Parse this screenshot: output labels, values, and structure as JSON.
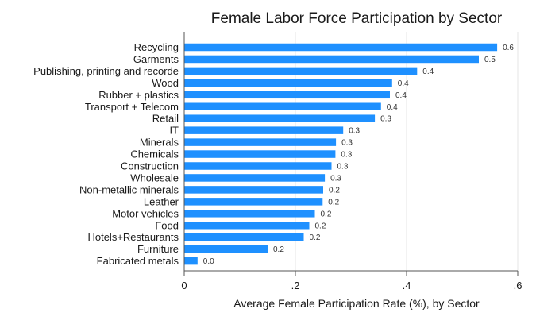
{
  "chart_data": {
    "type": "bar",
    "orientation": "horizontal",
    "title": "Female Labor Force Participation by Sector",
    "xlabel": "Average Female Participation Rate (%), by Sector",
    "ylabel": "",
    "xlim": [
      0,
      0.6
    ],
    "xticks": [
      {
        "value": 0,
        "label": "0"
      },
      {
        "value": 0.2,
        "label": ".2"
      },
      {
        "value": 0.4,
        "label": ".4"
      },
      {
        "value": 0.6,
        "label": ".6"
      }
    ],
    "grid": true,
    "bar_color": "#1e90ff",
    "categories": [
      "Recycling",
      "Garments",
      "Publishing, printing and recorde",
      "Wood",
      "Rubber +  plastics",
      "Transport + Telecom",
      "Retail",
      "IT",
      "Minerals",
      "Chemicals",
      "Construction",
      "Wholesale",
      "Non-metallic minerals",
      "Leather",
      "Motor vehicles",
      "Food",
      "Hotels+Restaurants",
      "Furniture",
      "Fabricated metals"
    ],
    "values": [
      0.563,
      0.53,
      0.419,
      0.374,
      0.37,
      0.354,
      0.343,
      0.286,
      0.273,
      0.272,
      0.265,
      0.253,
      0.25,
      0.249,
      0.235,
      0.225,
      0.215,
      0.15,
      0.024
    ],
    "data_labels": [
      "0.6",
      "0.5",
      "0.4",
      "0.4",
      "0.4",
      "0.4",
      "0.3",
      "0.3",
      "0.3",
      "0.3",
      "0.3",
      "0.3",
      "0.2",
      "0.2",
      "0.2",
      "0.2",
      "0.2",
      "0.2",
      "0.0"
    ]
  }
}
